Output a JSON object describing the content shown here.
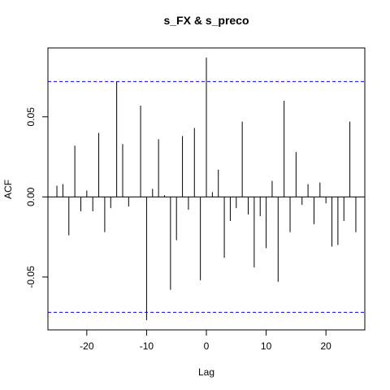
{
  "chart_data": {
    "type": "bar",
    "title": "s_FX & s_preco",
    "xlabel": "Lag",
    "ylabel": "ACF",
    "xlim": [
      -26.5,
      26.5
    ],
    "ylim": [
      -0.083,
      0.093
    ],
    "x_ticks": [
      -20,
      -10,
      0,
      10,
      20
    ],
    "x_tick_labels": [
      "-20",
      "-10",
      "0",
      "10",
      "20"
    ],
    "y_ticks": [
      -0.05,
      0.0,
      0.05
    ],
    "y_tick_labels": [
      "-0.05",
      "0.00",
      "0.05"
    ],
    "confidence_bound": 0.072,
    "colors": {
      "bars": "#000000",
      "bound": "#0000ff",
      "frame": "#000000"
    },
    "lags": [
      -25,
      -24,
      -23,
      -22,
      -21,
      -20,
      -19,
      -18,
      -17,
      -16,
      -15,
      -14,
      -13,
      -12,
      -11,
      -10,
      -9,
      -8,
      -7,
      -6,
      -5,
      -4,
      -3,
      -2,
      -1,
      0,
      1,
      2,
      3,
      4,
      5,
      6,
      7,
      8,
      9,
      10,
      11,
      12,
      13,
      14,
      15,
      16,
      17,
      18,
      19,
      20,
      21,
      22,
      23,
      24,
      25
    ],
    "values": [
      0.007,
      0.008,
      -0.024,
      0.032,
      -0.009,
      0.004,
      -0.009,
      0.04,
      -0.022,
      -0.007,
      0.072,
      0.033,
      -0.006,
      0.0,
      0.057,
      -0.077,
      0.005,
      0.036,
      0.001,
      -0.058,
      -0.027,
      0.038,
      -0.008,
      0.043,
      -0.052,
      0.087,
      0.003,
      0.017,
      -0.038,
      -0.015,
      -0.007,
      0.047,
      -0.011,
      -0.044,
      -0.012,
      -0.032,
      0.01,
      -0.053,
      0.06,
      -0.022,
      0.028,
      -0.005,
      0.008,
      -0.017,
      0.009,
      -0.004,
      -0.031,
      -0.03,
      -0.015,
      0.047,
      -0.022
    ]
  }
}
